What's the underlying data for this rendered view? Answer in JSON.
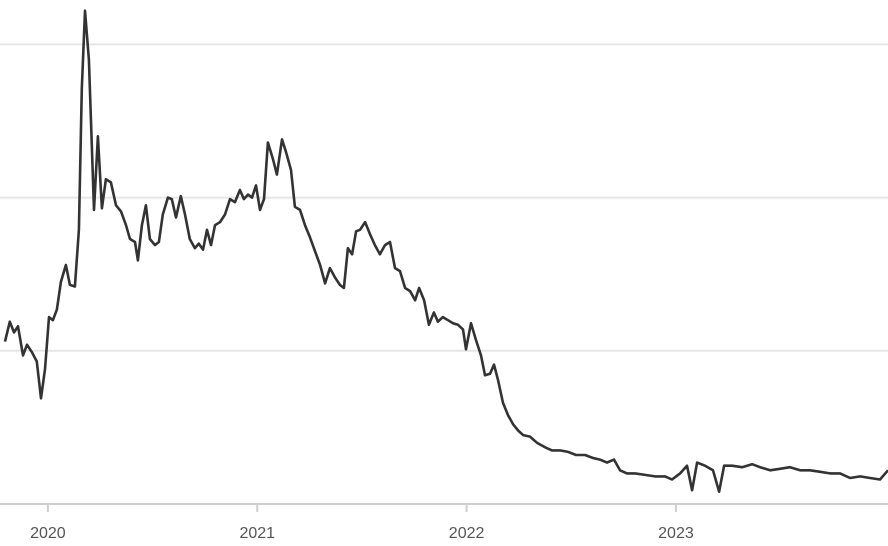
{
  "chart_data": {
    "type": "line",
    "color": "#333333",
    "grid": true,
    "xlim": [
      2019.795,
      2024.013
    ],
    "ylim": [
      0,
      3.29
    ],
    "xticks": [
      2020,
      2021,
      2022,
      2023
    ],
    "yticks": [
      0,
      1,
      2,
      3
    ],
    "x": [
      2019.795,
      2019.818,
      2019.838,
      2019.857,
      2019.881,
      2019.9,
      2019.924,
      2019.947,
      2019.967,
      2019.986,
      2020.005,
      2020.024,
      2020.043,
      2020.062,
      2020.086,
      2020.105,
      2020.129,
      2020.148,
      2020.162,
      2020.177,
      2020.196,
      2020.22,
      2020.239,
      2020.258,
      2020.277,
      2020.301,
      2020.325,
      2020.349,
      2020.373,
      2020.392,
      2020.416,
      2020.43,
      2020.449,
      2020.468,
      2020.487,
      2020.511,
      2020.53,
      2020.549,
      2020.573,
      2020.592,
      2020.612,
      2020.635,
      2020.655,
      2020.678,
      2020.702,
      2020.721,
      2020.741,
      2020.76,
      2020.779,
      2020.798,
      2020.822,
      2020.846,
      2020.87,
      2020.893,
      2020.917,
      2020.936,
      2020.956,
      2020.975,
      2020.994,
      2021.013,
      2021.032,
      2021.051,
      2021.075,
      2021.094,
      2021.118,
      2021.137,
      2021.161,
      2021.18,
      2021.204,
      2021.228,
      2021.252,
      2021.276,
      2021.3,
      2021.324,
      2021.347,
      2021.371,
      2021.395,
      2021.414,
      2021.433,
      2021.453,
      2021.472,
      2021.491,
      2021.515,
      2021.539,
      2021.562,
      2021.586,
      2021.61,
      2021.634,
      2021.658,
      2021.682,
      2021.706,
      2021.73,
      2021.754,
      2021.773,
      2021.797,
      2021.82,
      2021.844,
      2021.863,
      2021.887,
      2021.911,
      2021.935,
      2021.959,
      2021.983,
      2021.997,
      2022.021,
      2022.045,
      2022.069,
      2022.088,
      2022.112,
      2022.131,
      2022.15,
      2022.174,
      2022.198,
      2022.222,
      2022.246,
      2022.27,
      2022.303,
      2022.336,
      2022.375,
      2022.408,
      2022.446,
      2022.485,
      2022.523,
      2022.566,
      2022.604,
      2022.637,
      2022.671,
      2022.704,
      2022.733,
      2022.766,
      2022.805,
      2022.852,
      2022.9,
      2022.948,
      2022.981,
      2023.02,
      2023.053,
      2023.077,
      2023.101,
      2023.139,
      2023.177,
      2023.206,
      2023.23,
      2023.268,
      2023.316,
      2023.364,
      2023.402,
      2023.45,
      2023.497,
      2023.545,
      2023.593,
      2023.641,
      2023.689,
      2023.736,
      2023.784,
      2023.832,
      2023.88,
      2023.927,
      2023.975,
      2024.013
    ],
    "values": [
      1.06,
      1.19,
      1.12,
      1.16,
      0.97,
      1.04,
      0.99,
      0.93,
      0.69,
      0.88,
      1.22,
      1.2,
      1.27,
      1.45,
      1.56,
      1.43,
      1.42,
      1.79,
      2.71,
      3.22,
      2.9,
      1.92,
      2.4,
      1.93,
      2.12,
      2.1,
      1.95,
      1.91,
      1.82,
      1.73,
      1.71,
      1.59,
      1.82,
      1.95,
      1.73,
      1.69,
      1.71,
      1.89,
      2.0,
      1.99,
      1.87,
      2.01,
      1.89,
      1.73,
      1.67,
      1.7,
      1.66,
      1.79,
      1.69,
      1.82,
      1.84,
      1.89,
      1.99,
      1.97,
      2.05,
      1.99,
      2.02,
      2.0,
      2.08,
      1.92,
      1.99,
      2.36,
      2.25,
      2.15,
      2.38,
      2.3,
      2.18,
      1.94,
      1.92,
      1.82,
      1.74,
      1.65,
      1.56,
      1.44,
      1.54,
      1.48,
      1.43,
      1.41,
      1.67,
      1.63,
      1.78,
      1.79,
      1.84,
      1.76,
      1.69,
      1.63,
      1.69,
      1.71,
      1.54,
      1.52,
      1.41,
      1.39,
      1.33,
      1.41,
      1.33,
      1.17,
      1.25,
      1.19,
      1.22,
      1.2,
      1.18,
      1.17,
      1.14,
      1.01,
      1.18,
      1.07,
      0.97,
      0.84,
      0.85,
      0.91,
      0.81,
      0.66,
      0.58,
      0.52,
      0.48,
      0.45,
      0.44,
      0.4,
      0.37,
      0.35,
      0.35,
      0.34,
      0.32,
      0.32,
      0.3,
      0.29,
      0.27,
      0.29,
      0.22,
      0.2,
      0.2,
      0.19,
      0.18,
      0.18,
      0.16,
      0.2,
      0.25,
      0.09,
      0.27,
      0.25,
      0.22,
      0.08,
      0.25,
      0.25,
      0.24,
      0.26,
      0.24,
      0.22,
      0.23,
      0.24,
      0.22,
      0.22,
      0.21,
      0.2,
      0.2,
      0.17,
      0.18,
      0.17,
      0.16,
      0.22
    ]
  }
}
